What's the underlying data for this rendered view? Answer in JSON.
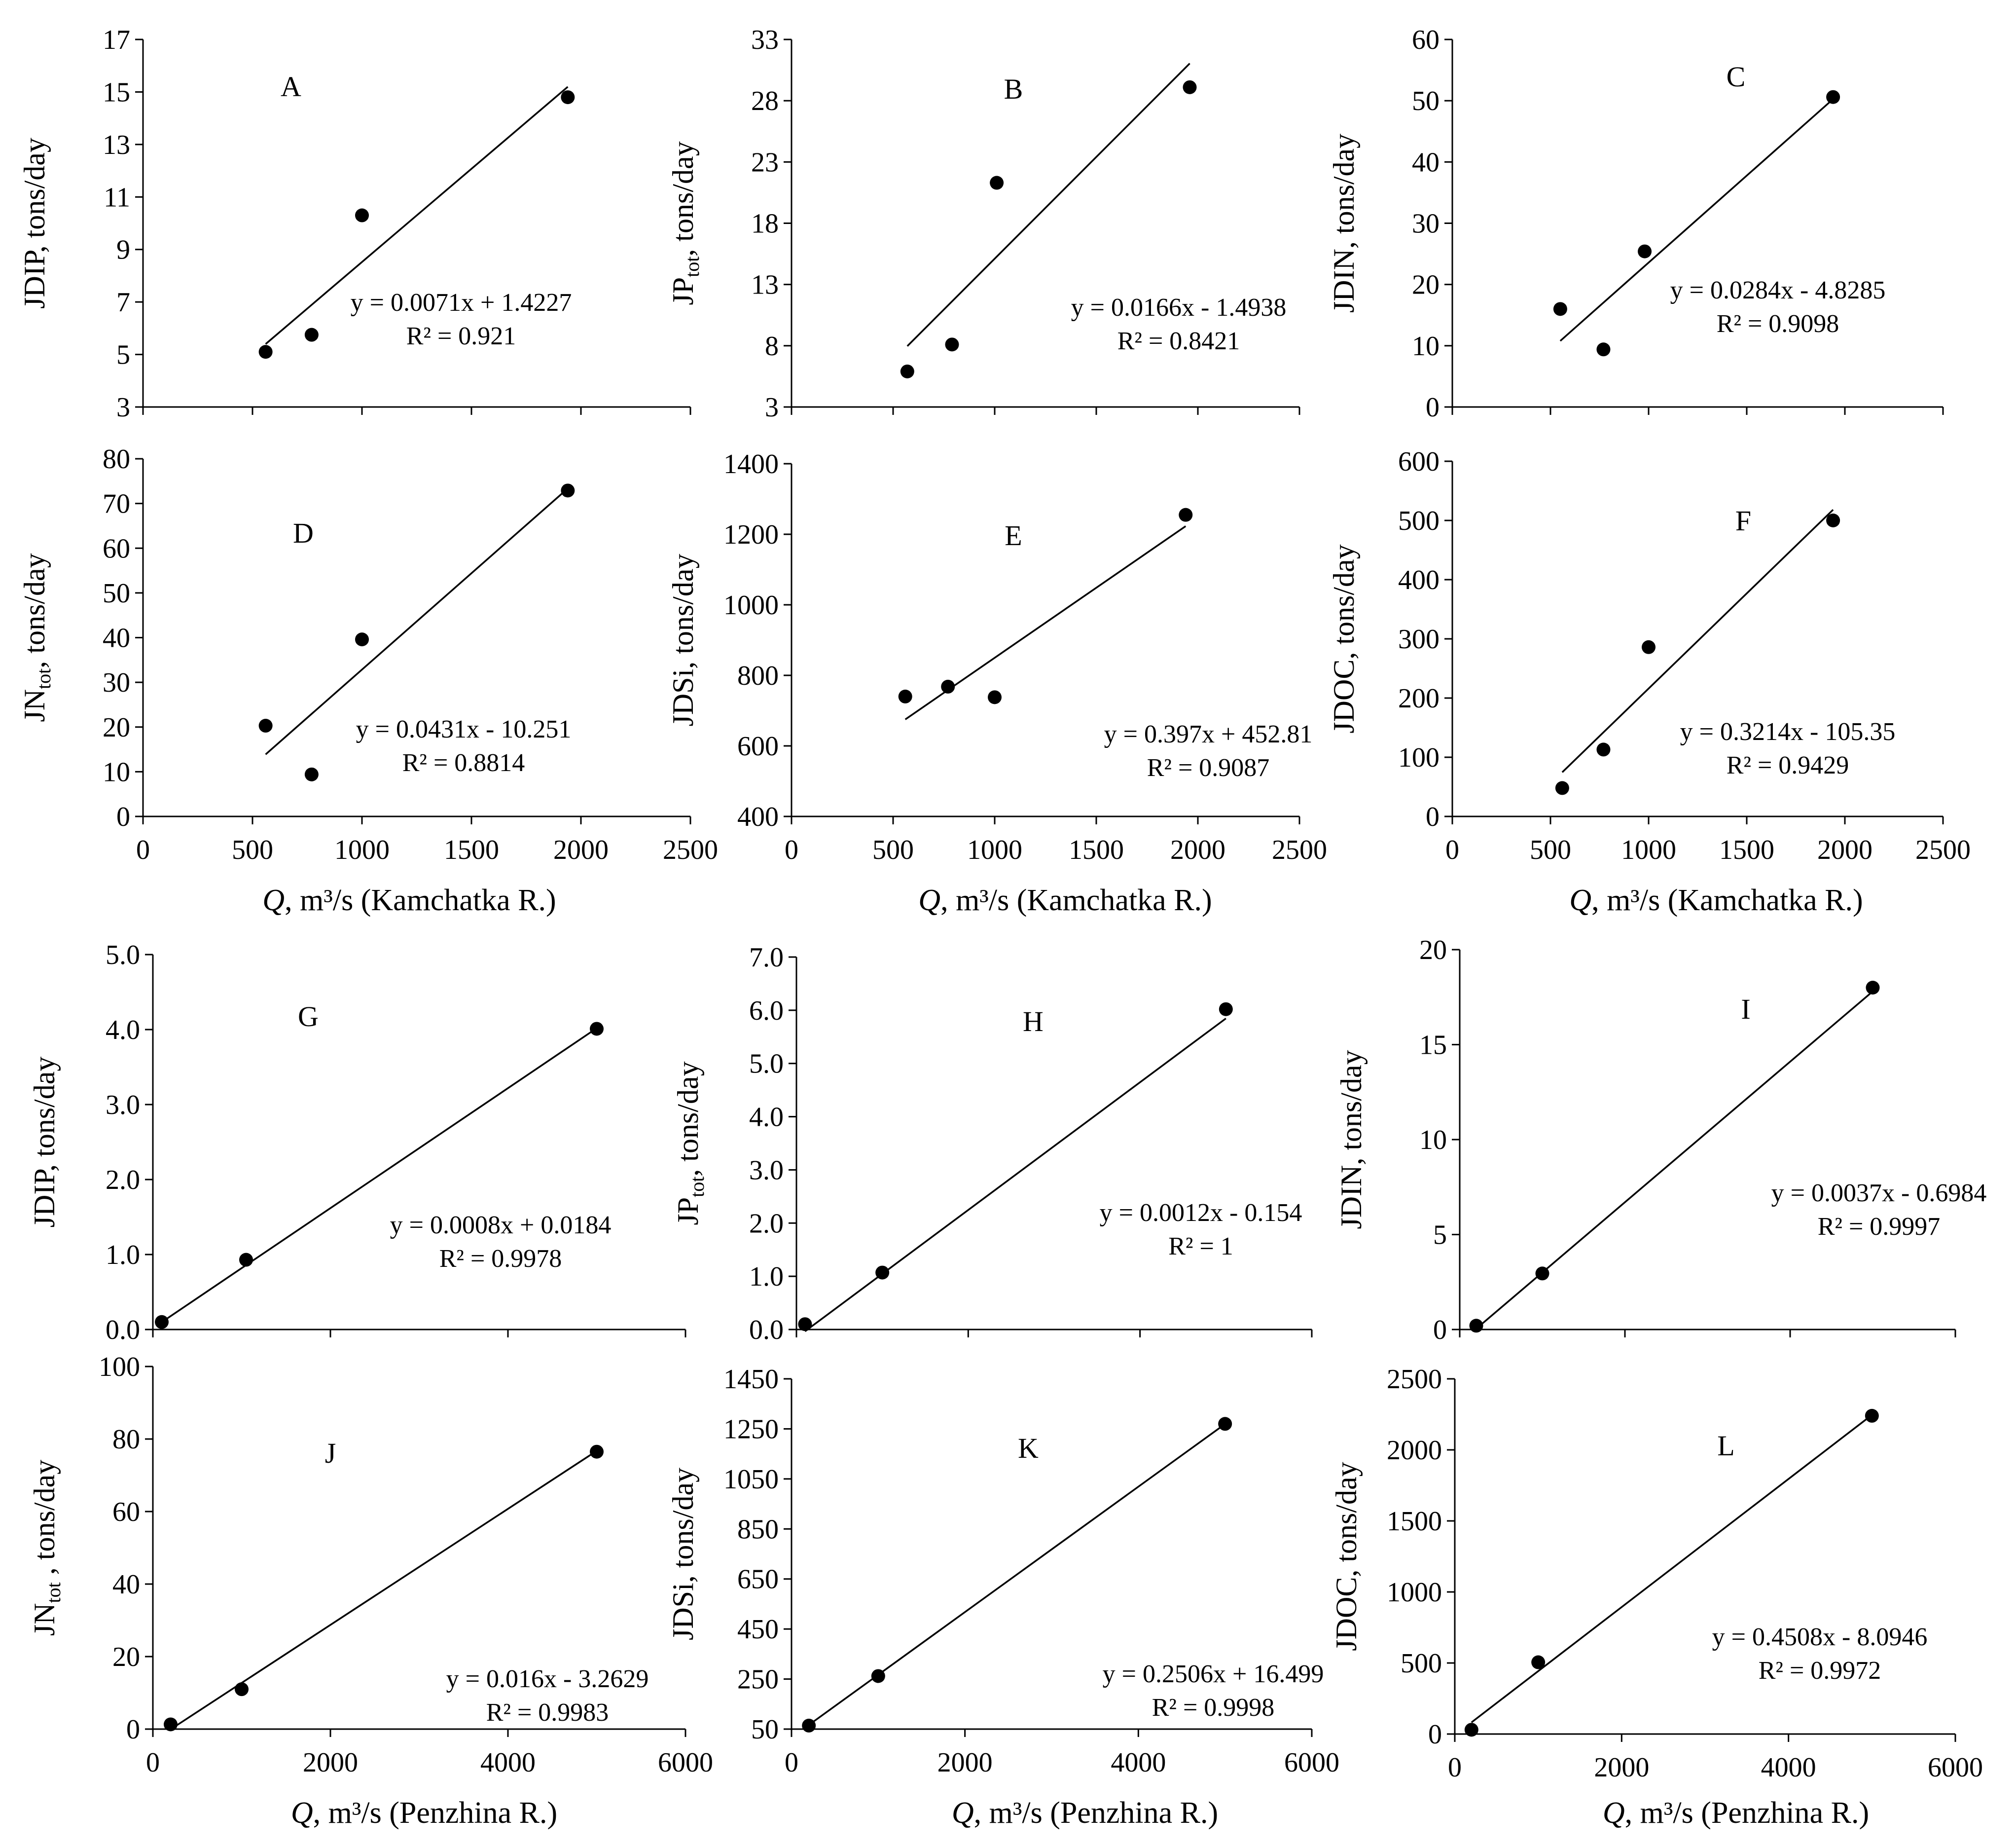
{
  "figure": {
    "description": "Twelve scatter plots of river loads vs discharge",
    "kamchatka_xlabel": {
      "italic": "Q",
      "unit": "m³/s",
      "suffix": "(Kamchatka R.)"
    },
    "penzhina_xlabel": {
      "italic": "Q",
      "unit": "m³/s",
      "suffix": "(Penzhina R.)"
    }
  },
  "chart_data": [
    {
      "id": "A",
      "type": "scatter",
      "letter": "A",
      "ylabel": {
        "main": "JDIP, tons/day",
        "sub": "",
        "rest": ""
      },
      "xlim": [
        0,
        2500
      ],
      "ylim": [
        3,
        17
      ],
      "xticks": [
        0,
        500,
        1000,
        1500,
        2000,
        2500
      ],
      "yticks": [
        3,
        5,
        7,
        9,
        11,
        13,
        15,
        17
      ],
      "xticklabels": false,
      "points": [
        [
          560,
          5.1
        ],
        [
          770,
          5.75
        ],
        [
          1000,
          10.3
        ],
        [
          1940,
          14.8
        ]
      ],
      "trend": {
        "slope": 0.0071,
        "intercept": 1.4227,
        "x": [
          560,
          1940
        ]
      },
      "equation": "y = 0.0071x + 1.4227",
      "r2": "R² = 0.921"
    },
    {
      "id": "B",
      "type": "scatter",
      "letter": "B",
      "ylabel": {
        "main": "JP",
        "sub": "tot",
        "rest": ", tons/day"
      },
      "xlim": [
        0,
        2500
      ],
      "ylim": [
        3,
        33
      ],
      "xticks": [
        0,
        500,
        1000,
        1500,
        2000,
        2500
      ],
      "yticks": [
        3,
        8,
        13,
        18,
        23,
        28,
        33
      ],
      "xticklabels": false,
      "points": [
        [
          570,
          5.9
        ],
        [
          790,
          8.1
        ],
        [
          1010,
          21.3
        ],
        [
          1960,
          29.1
        ]
      ],
      "trend": {
        "slope": 0.0166,
        "intercept": -1.4938,
        "x": [
          570,
          1960
        ]
      },
      "equation": "y = 0.0166x - 1.4938",
      "r2": "R² = 0.8421"
    },
    {
      "id": "C",
      "type": "scatter",
      "letter": "C",
      "ylabel": {
        "main": "JDIN, tons/day",
        "sub": "",
        "rest": ""
      },
      "xlim": [
        0,
        2500
      ],
      "ylim": [
        0,
        60
      ],
      "xticks": [
        0,
        500,
        1000,
        1500,
        2000,
        2500
      ],
      "yticks": [
        0,
        10,
        20,
        30,
        40,
        50,
        60
      ],
      "xticklabels": false,
      "points": [
        [
          550,
          16
        ],
        [
          770,
          9.4
        ],
        [
          980,
          25.4
        ],
        [
          1940,
          50.6
        ]
      ],
      "trend": {
        "slope": 0.0284,
        "intercept": -4.8285,
        "x": [
          550,
          1940
        ]
      },
      "equation": "y = 0.0284x - 4.8285",
      "r2": "R² = 0.9098"
    },
    {
      "id": "D",
      "type": "scatter",
      "letter": "D",
      "ylabel": {
        "main": "JN",
        "sub": "tot",
        "rest": ", tons/day"
      },
      "xlim": [
        0,
        2500
      ],
      "ylim": [
        0,
        80
      ],
      "xticks": [
        0,
        500,
        1000,
        1500,
        2000,
        2500
      ],
      "yticks": [
        0,
        10,
        20,
        30,
        40,
        50,
        60,
        70,
        80
      ],
      "xticklabels": true,
      "points": [
        [
          560,
          20.3
        ],
        [
          770,
          9.4
        ],
        [
          1000,
          39.6
        ],
        [
          1940,
          72.9
        ]
      ],
      "trend": {
        "slope": 0.0431,
        "intercept": -10.251,
        "x": [
          560,
          1940
        ]
      },
      "equation": "y = 0.0431x - 10.251",
      "r2": "R² = 0.8814"
    },
    {
      "id": "E",
      "type": "scatter",
      "letter": "E",
      "ylabel": {
        "main": "JDSi, tons/day",
        "sub": "",
        "rest": ""
      },
      "xlim": [
        0,
        2500
      ],
      "ylim": [
        400,
        1400
      ],
      "xticks": [
        0,
        500,
        1000,
        1500,
        2000,
        2500
      ],
      "yticks": [
        400,
        600,
        800,
        1000,
        1200,
        1400
      ],
      "xticklabels": true,
      "points": [
        [
          560,
          740
        ],
        [
          770,
          768
        ],
        [
          1000,
          738
        ],
        [
          1940,
          1255
        ]
      ],
      "trend": {
        "slope": 0.397,
        "intercept": 452.81,
        "x": [
          560,
          1940
        ]
      },
      "equation": "y = 0.397x + 452.81",
      "r2": "R² = 0.9087"
    },
    {
      "id": "F",
      "type": "scatter",
      "letter": "F",
      "ylabel": {
        "main": "JDOC, tons/day",
        "sub": "",
        "rest": ""
      },
      "xlim": [
        0,
        2500
      ],
      "ylim": [
        0,
        600
      ],
      "xticks": [
        0,
        500,
        1000,
        1500,
        2000,
        2500
      ],
      "yticks": [
        0,
        100,
        200,
        300,
        400,
        500,
        600
      ],
      "xticklabels": true,
      "points": [
        [
          560,
          48
        ],
        [
          770,
          113
        ],
        [
          1000,
          286
        ],
        [
          1940,
          500
        ]
      ],
      "trend": {
        "slope": 0.3214,
        "intercept": -105.35,
        "x": [
          560,
          1940
        ]
      },
      "equation": "y = 0.3214x - 105.35",
      "r2": "R² = 0.9429"
    },
    {
      "id": "G",
      "type": "scatter",
      "letter": "G",
      "ylabel": {
        "main": "JDIP, tons/day",
        "sub": "",
        "rest": ""
      },
      "xlim": [
        0,
        6000
      ],
      "ylim": [
        0,
        5
      ],
      "xticks": [
        0,
        2000,
        4000,
        6000
      ],
      "yticks": [
        0,
        1,
        2,
        3,
        4,
        5
      ],
      "ytickformat": "0.0",
      "xticklabels": false,
      "points": [
        [
          100,
          0.1
        ],
        [
          1050,
          0.93
        ],
        [
          5000,
          4.01
        ]
      ],
      "trend": {
        "slope": 0.0008,
        "intercept": 0.0184,
        "x": [
          100,
          5000
        ]
      },
      "equation": "y = 0.0008x + 0.0184",
      "r2": "R² = 0.9978"
    },
    {
      "id": "H",
      "type": "scatter",
      "letter": "H",
      "ylabel": {
        "main": "JP",
        "sub": "tot",
        "rest": ", tons/day"
      },
      "xlim": [
        0,
        6000
      ],
      "ylim": [
        0,
        7
      ],
      "xticks": [
        0,
        2000,
        4000,
        6000
      ],
      "yticks": [
        0,
        1,
        2,
        3,
        4,
        5,
        6,
        7
      ],
      "ytickformat": "0.0",
      "xticklabels": false,
      "points": [
        [
          100,
          0.1
        ],
        [
          1000,
          1.07
        ],
        [
          5000,
          6.02
        ]
      ],
      "trend": {
        "slope": 0.0012,
        "intercept": -0.154,
        "x": [
          100,
          5000
        ]
      },
      "equation": "y = 0.0012x - 0.154",
      "r2": "R² = 1"
    },
    {
      "id": "I",
      "type": "scatter",
      "letter": "I",
      "ylabel": {
        "main": "JDIN, tons/day",
        "sub": "",
        "rest": ""
      },
      "xlim": [
        0,
        6000
      ],
      "ylim": [
        0,
        20
      ],
      "xticks": [
        0,
        2000,
        4000,
        6000
      ],
      "yticks": [
        0,
        5,
        10,
        15,
        20
      ],
      "xticklabels": false,
      "points": [
        [
          200,
          0.2
        ],
        [
          1000,
          2.95
        ],
        [
          5000,
          18.0
        ]
      ],
      "trend": {
        "slope": 0.0037,
        "intercept": -0.6984,
        "x": [
          200,
          5000
        ]
      },
      "equation": "y = 0.0037x - 0.6984",
      "r2": "R² = 0.9997"
    },
    {
      "id": "J",
      "type": "scatter",
      "letter": "J",
      "ylabel": {
        "main": "JN",
        "sub": "tot",
        "rest": " , tons/day"
      },
      "xlim": [
        0,
        6000
      ],
      "ylim": [
        0,
        100
      ],
      "xticks": [
        0,
        2000,
        4000,
        6000
      ],
      "yticks": [
        0,
        20,
        40,
        60,
        80,
        100
      ],
      "xticklabels": true,
      "points": [
        [
          200,
          1.3
        ],
        [
          1000,
          11
        ],
        [
          5000,
          76.5
        ]
      ],
      "trend": {
        "slope": 0.016,
        "intercept": -3.2629,
        "x": [
          200,
          5000
        ]
      },
      "equation": "y = 0.016x - 3.2629",
      "r2": "R² = 0.9983"
    },
    {
      "id": "K",
      "type": "scatter",
      "letter": "K",
      "ylabel": {
        "main": "JDSi, tons/day",
        "sub": "",
        "rest": ""
      },
      "xlim": [
        0,
        6000
      ],
      "ylim": [
        50,
        1450
      ],
      "xticks": [
        0,
        2000,
        4000,
        6000
      ],
      "yticks": [
        50,
        250,
        450,
        650,
        850,
        1050,
        1250,
        1450
      ],
      "xticklabels": true,
      "points": [
        [
          200,
          64
        ],
        [
          1000,
          262
        ],
        [
          5000,
          1270
        ]
      ],
      "trend": {
        "slope": 0.2506,
        "intercept": 16.499,
        "x": [
          200,
          5000
        ]
      },
      "equation": "y = 0.2506x + 16.499",
      "r2": "R² = 0.9998"
    },
    {
      "id": "L",
      "type": "scatter",
      "letter": "L",
      "ylabel": {
        "main": "JDOC, tons/day",
        "sub": "",
        "rest": ""
      },
      "xlim": [
        0,
        6000
      ],
      "ylim": [
        0,
        2500
      ],
      "xticks": [
        0,
        2000,
        4000,
        6000
      ],
      "yticks": [
        0,
        500,
        1000,
        1500,
        2000,
        2500
      ],
      "xticklabels": true,
      "points": [
        [
          200,
          30
        ],
        [
          1000,
          505
        ],
        [
          5000,
          2240
        ]
      ],
      "trend": {
        "slope": 0.4508,
        "intercept": -8.0946,
        "x": [
          200,
          5000
        ]
      },
      "equation": "y = 0.4508x - 8.0946",
      "r2": "R² = 0.9972"
    }
  ]
}
